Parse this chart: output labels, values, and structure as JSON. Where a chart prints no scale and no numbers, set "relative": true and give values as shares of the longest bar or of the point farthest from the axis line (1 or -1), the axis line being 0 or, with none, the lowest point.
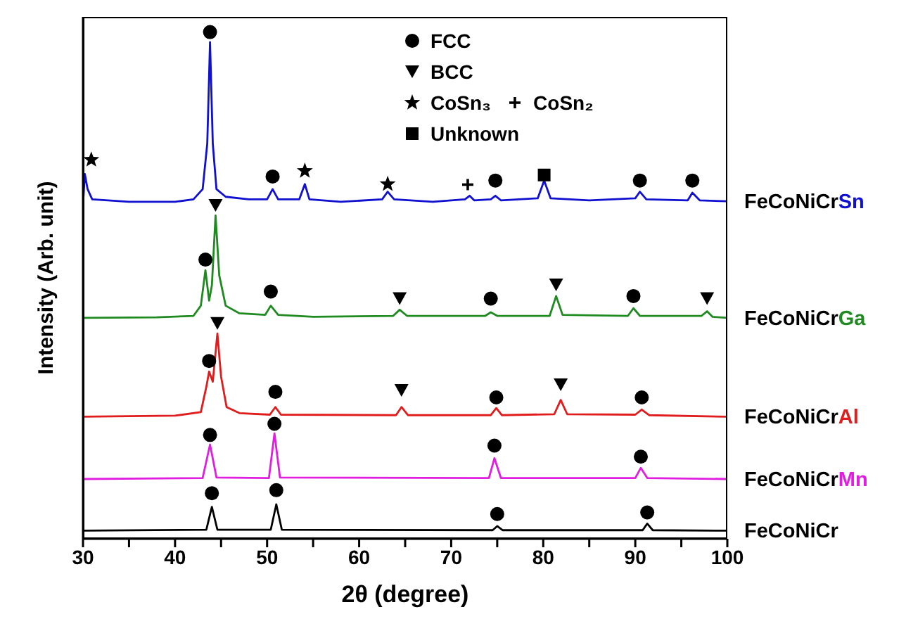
{
  "chart_data": {
    "type": "line",
    "relative": true,
    "xlabel": "2θ (degree)",
    "ylabel": "Intensity (Arb. unit)",
    "xlim": [
      30,
      100
    ],
    "xticks": [
      30,
      {
        "value": 35,
        "label": null
      },
      40,
      {
        "value": 45,
        "label": null
      },
      50,
      {
        "value": 55,
        "label": null
      },
      60,
      {
        "value": 65,
        "label": null
      },
      70,
      {
        "value": 75,
        "label": null
      },
      80,
      {
        "value": 85,
        "label": null
      },
      90,
      {
        "value": 95,
        "label": null
      },
      100
    ],
    "legend": "top",
    "series": [
      {
        "name": "FeCoNiCrSn",
        "color": "#1010d0",
        "x": [
          30,
          30.2,
          30.5,
          31,
          35,
          40,
          42,
          43,
          43.5,
          43.8,
          44.1,
          44.5,
          45.5,
          48,
          50,
          50.6,
          51.2,
          53.5,
          54.1,
          54.6,
          58,
          62.5,
          63.1,
          63.8,
          68,
          71.5,
          72,
          72.5,
          74.3,
          74.8,
          75.4,
          79.4,
          80.1,
          80.8,
          85,
          90,
          90.5,
          91.2,
          95.7,
          96.2,
          97,
          100
        ],
        "values": [
          0.66,
          0.72,
          0.69,
          0.67,
          0.665,
          0.665,
          0.67,
          0.69,
          0.78,
          0.98,
          0.78,
          0.69,
          0.675,
          0.67,
          0.67,
          0.69,
          0.67,
          0.67,
          0.7,
          0.67,
          0.665,
          0.67,
          0.685,
          0.67,
          0.665,
          0.67,
          0.677,
          0.668,
          0.67,
          0.677,
          0.668,
          0.672,
          0.707,
          0.672,
          0.668,
          0.672,
          0.685,
          0.67,
          0.668,
          0.683,
          0.668,
          0.666
        ]
      },
      {
        "name": "FeCoNiCrGa",
        "color": "#1f8a1f",
        "x": [
          30,
          38,
          42,
          42.8,
          43.3,
          43.7,
          44,
          44.4,
          44.8,
          45.5,
          47,
          49.8,
          50.4,
          51.2,
          55,
          63.7,
          64.4,
          65.2,
          73.7,
          74.3,
          75,
          80.7,
          81.4,
          82.1,
          89.2,
          89.8,
          90.5,
          97.2,
          97.8,
          98.4,
          100
        ],
        "values": [
          0.436,
          0.437,
          0.44,
          0.46,
          0.53,
          0.47,
          0.5,
          0.638,
          0.52,
          0.46,
          0.445,
          0.442,
          0.46,
          0.442,
          0.438,
          0.44,
          0.452,
          0.44,
          0.44,
          0.447,
          0.44,
          0.44,
          0.479,
          0.442,
          0.44,
          0.455,
          0.44,
          0.44,
          0.449,
          0.438,
          0.436
        ]
      },
      {
        "name": "FeCoNiCrAl",
        "color": "#e01c1c",
        "x": [
          30,
          40,
          42.8,
          43.4,
          43.7,
          44.1,
          44.6,
          45,
          45.6,
          47,
          50.3,
          50.9,
          51.5,
          64,
          64.6,
          65.3,
          74.3,
          74.9,
          75.5,
          81.2,
          81.9,
          82.6,
          90,
          90.7,
          91.5,
          100
        ],
        "values": [
          0.241,
          0.243,
          0.25,
          0.3,
          0.33,
          0.31,
          0.405,
          0.32,
          0.26,
          0.248,
          0.245,
          0.26,
          0.245,
          0.244,
          0.26,
          0.244,
          0.244,
          0.258,
          0.244,
          0.246,
          0.274,
          0.246,
          0.245,
          0.255,
          0.244,
          0.241
        ]
      },
      {
        "name": "FeCoNiCrMn",
        "color": "#e01ee0",
        "x": [
          30,
          43,
          43.8,
          44.5,
          50.2,
          50.8,
          51.4,
          74.1,
          74.7,
          75.4,
          90,
          90.6,
          91.3,
          100
        ],
        "values": [
          0.118,
          0.12,
          0.186,
          0.121,
          0.12,
          0.208,
          0.121,
          0.12,
          0.159,
          0.12,
          0.12,
          0.14,
          0.12,
          0.118
        ]
      },
      {
        "name": "FeCoNiCr",
        "color": "#000000",
        "x": [
          30,
          43.4,
          44,
          44.6,
          50.4,
          51,
          51.6,
          74.5,
          75,
          75.6,
          90.8,
          91.3,
          91.9,
          100
        ],
        "values": [
          0.016,
          0.018,
          0.063,
          0.018,
          0.018,
          0.068,
          0.018,
          0.017,
          0.025,
          0.017,
          0.017,
          0.03,
          0.017,
          0.016
        ]
      },
      {
        "type": "scatter",
        "name": "FCC",
        "color": "#000000",
        "marker": "circle",
        "x": [
          43.8,
          50.6,
          74.8,
          90.5,
          96.2,
          43.3,
          50.4,
          74.3,
          89.8,
          43.7,
          50.9,
          74.9,
          90.7,
          43.8,
          50.8,
          74.7,
          90.6,
          44,
          51,
          75,
          91.3
        ],
        "values": [
          1.0,
          0.715,
          0.707,
          0.707,
          0.707,
          0.551,
          0.488,
          0.474,
          0.479,
          0.351,
          0.29,
          0.279,
          0.279,
          0.205,
          0.227,
          0.184,
          0.162,
          0.09,
          0.096,
          0.049,
          0.052
        ]
      },
      {
        "type": "scatter",
        "name": "BCC",
        "color": "#000000",
        "marker": "triangle",
        "x": [
          44.4,
          64.4,
          81.4,
          97.8,
          44.6,
          64.6,
          81.9
        ],
        "values": [
          0.658,
          0.474,
          0.501,
          0.474,
          0.425,
          0.293,
          0.304
        ]
      },
      {
        "type": "scatter",
        "name": "CoSn₃",
        "color": "#000000",
        "marker": "star",
        "x": [
          30.9,
          54.1,
          63.1
        ],
        "values": [
          0.748,
          0.726,
          0.7
        ]
      },
      {
        "type": "scatter",
        "name": "CoSn₂",
        "color": "#000000",
        "marker": "cross",
        "x": [
          71.8
        ],
        "values": [
          0.699
        ]
      },
      {
        "type": "scatter",
        "name": "Unknown",
        "color": "#000000",
        "marker": "square",
        "x": [
          80.1
        ],
        "values": [
          0.718
        ]
      }
    ]
  }
}
